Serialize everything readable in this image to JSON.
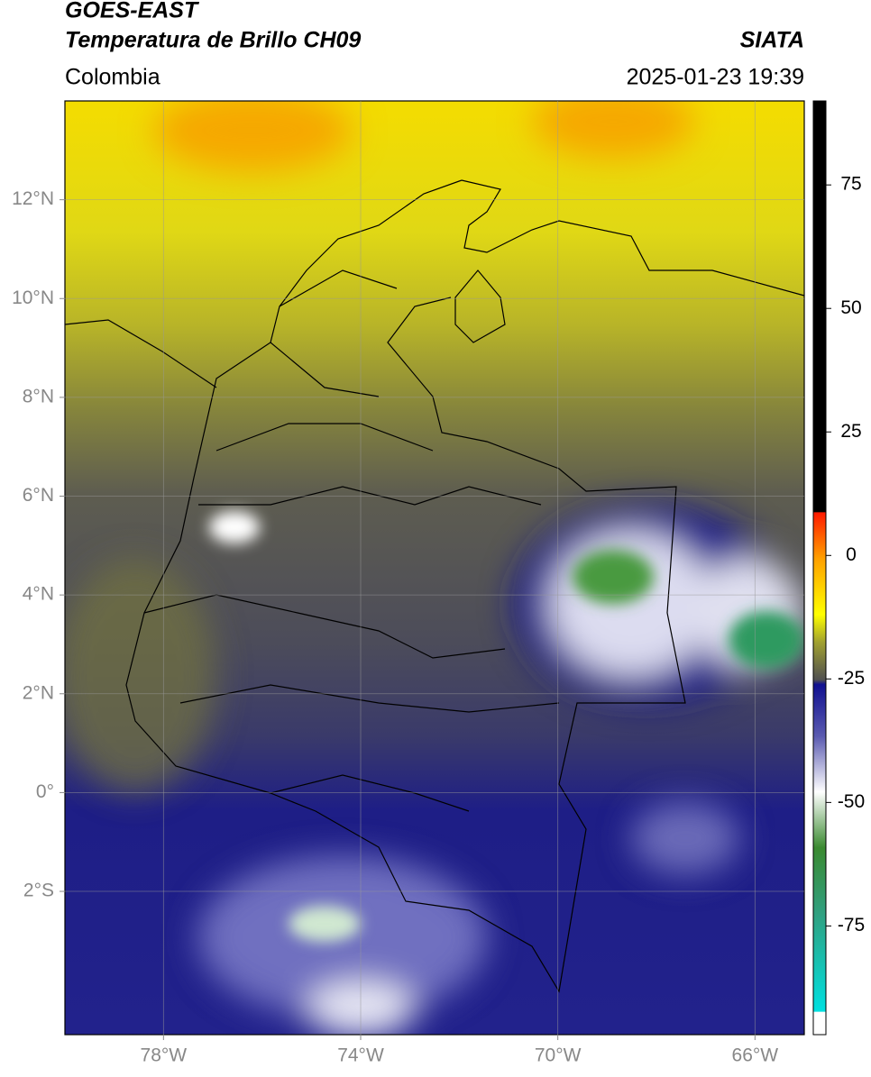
{
  "header": {
    "satellite": "GOES-EAST",
    "product": "Temperatura de Brillo CH09",
    "region": "Colombia",
    "source": "SIATA",
    "datetime": "2025-01-23 19:39"
  },
  "map": {
    "lonlim": [
      -80,
      -65
    ],
    "latlim": [
      -4.9,
      14
    ],
    "lon_ticks": [
      {
        "value": -78,
        "label": "78°W"
      },
      {
        "value": -74,
        "label": "74°W"
      },
      {
        "value": -70,
        "label": "70°W"
      },
      {
        "value": -66,
        "label": "66°W"
      }
    ],
    "lat_ticks": [
      {
        "value": 12,
        "label": "12°N"
      },
      {
        "value": 10,
        "label": "10°N"
      },
      {
        "value": 8,
        "label": "8°N"
      },
      {
        "value": 6,
        "label": "6°N"
      },
      {
        "value": 4,
        "label": "4°N"
      },
      {
        "value": 2,
        "label": "2°N"
      },
      {
        "value": 0,
        "label": "0°"
      },
      {
        "value": -2,
        "label": "2°S"
      }
    ]
  },
  "colorbar": {
    "lim": [
      -97,
      92
    ],
    "ticks": [
      75,
      50,
      25,
      0,
      -25,
      -50,
      -75
    ]
  }
}
